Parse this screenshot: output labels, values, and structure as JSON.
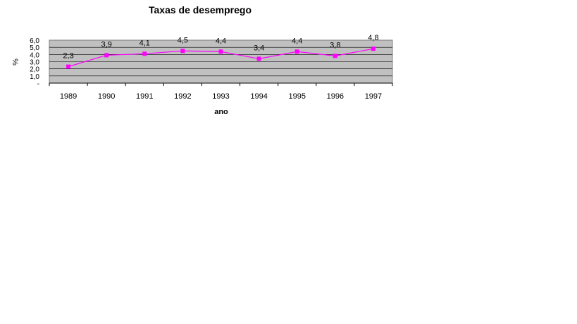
{
  "chart_data": {
    "type": "line",
    "title": "Taxas de desemprego",
    "xlabel": "ano",
    "ylabel": "%",
    "categories": [
      "1989",
      "1990",
      "1991",
      "1992",
      "1993",
      "1994",
      "1995",
      "1996",
      "1997"
    ],
    "series": [
      {
        "values": [
          2.3,
          3.9,
          4.1,
          4.5,
          4.4,
          3.4,
          4.4,
          3.8,
          4.8
        ],
        "data_labels": [
          "2,3",
          "3,9",
          "4,1",
          "4,5",
          "4,4",
          "3,4",
          "4,4",
          "3,8",
          "4,8"
        ],
        "color": "#ff00ff"
      }
    ],
    "yticks": [
      "6,0",
      "5,0",
      "4,0",
      "3,0",
      "2,0",
      "1,0",
      "-"
    ],
    "ylim": [
      0,
      6
    ],
    "grid": true,
    "plot_background": "#c0c0c0",
    "legend": "none"
  }
}
